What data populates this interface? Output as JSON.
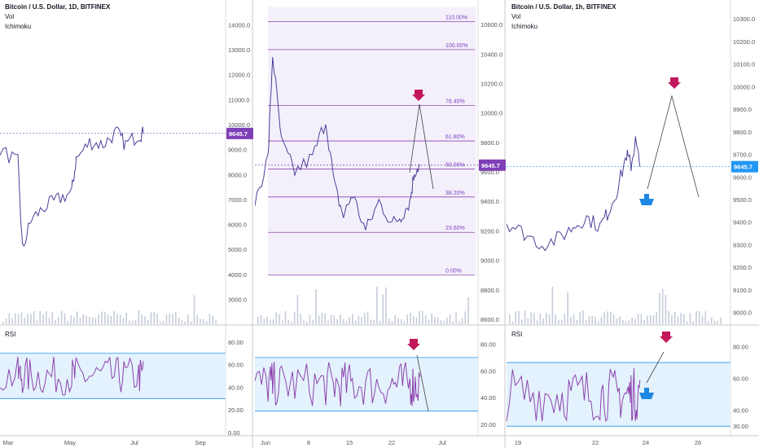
{
  "chart_data": [
    {
      "type": "line",
      "title": "Bitcoin / U.S. Dollar, 1D, BITFINEX",
      "indicators": [
        "Vol",
        "Ichimoku"
      ],
      "y_ticks": [
        "14000.0",
        "13000.0",
        "12000.0",
        "11000.0",
        "10000.0",
        "9000.0",
        "8000.0",
        "7000.0",
        "6000.0",
        "5000.0",
        "4000.0",
        "3000.0"
      ],
      "ylim": [
        2200,
        14600
      ],
      "x_ticks": [
        "Mar",
        "May",
        "Jul",
        "Sep"
      ],
      "last_price": "9645.7",
      "rsi": {
        "label": "RSI",
        "y_ticks": [
          "80.00",
          "60.00",
          "40.00",
          "20.00",
          "0.00"
        ],
        "band": [
          30,
          70
        ],
        "ylim": [
          0,
          90
        ]
      }
    },
    {
      "type": "line",
      "title": "",
      "y_ticks": [
        "10600.0",
        "10400.0",
        "10200.0",
        "10000.0",
        "9800.0",
        "9600.0",
        "9400.0",
        "9200.0",
        "9000.0",
        "8800.0",
        "8600.0"
      ],
      "ylim": [
        8600,
        10700
      ],
      "x_ticks": [
        "Jun",
        "8",
        "15",
        "22",
        "Jul"
      ],
      "fib_levels": [
        {
          "label": "110.00%",
          "price": 10620
        },
        {
          "label": "100.00%",
          "price": 10430
        },
        {
          "label": "76.40%",
          "price": 10050
        },
        {
          "label": "61.80%",
          "price": 9810
        },
        {
          "label": "50.00%",
          "price": 9620
        },
        {
          "label": "38.20%",
          "price": 9430
        },
        {
          "label": "23.60%",
          "price": 9190
        },
        {
          "label": "0.00%",
          "price": 8900
        }
      ],
      "last_price": "9645.7",
      "rsi": {
        "y_ticks": [
          "80.00",
          "60.00",
          "40.00",
          "20.00"
        ],
        "band": [
          30,
          70
        ],
        "ylim": [
          14,
          90
        ]
      }
    },
    {
      "type": "line",
      "title": "Bitcoin / U.S. Dollar, 1h, BITFINEX",
      "indicators": [
        "Vol",
        "Ichimoku"
      ],
      "y_ticks": [
        "10300.0",
        "10200.0",
        "10100.0",
        "10000.0",
        "9900.0",
        "9800.0",
        "9700.0",
        "9600.0",
        "9500.0",
        "9400.0",
        "9300.0",
        "9200.0",
        "9100.0",
        "9000.0"
      ],
      "ylim": [
        8970,
        10340
      ],
      "x_ticks": [
        "19",
        "22",
        "24",
        "26"
      ],
      "last_price": "9645.7",
      "rsi": {
        "label": "RSI",
        "y_ticks": [
          "80.00",
          "60.00",
          "40.00",
          "30.00"
        ],
        "band": [
          30,
          70
        ],
        "ylim": [
          26,
          90
        ]
      }
    }
  ],
  "colors": {
    "price_line": "#4b3f9a",
    "rsi_line": "#8e44ad",
    "band_fill": "#e3f2fd",
    "band_line": "#2196f3",
    "cloud_green": "#bbdefb",
    "cloud_red": "#d1c4e9",
    "fib_line": "#8e44ad",
    "badge": "#7e3fb7",
    "badge_blue": "#2196f3",
    "arrow_down": "#c2185b",
    "arrow_up": "#1e88e5"
  }
}
